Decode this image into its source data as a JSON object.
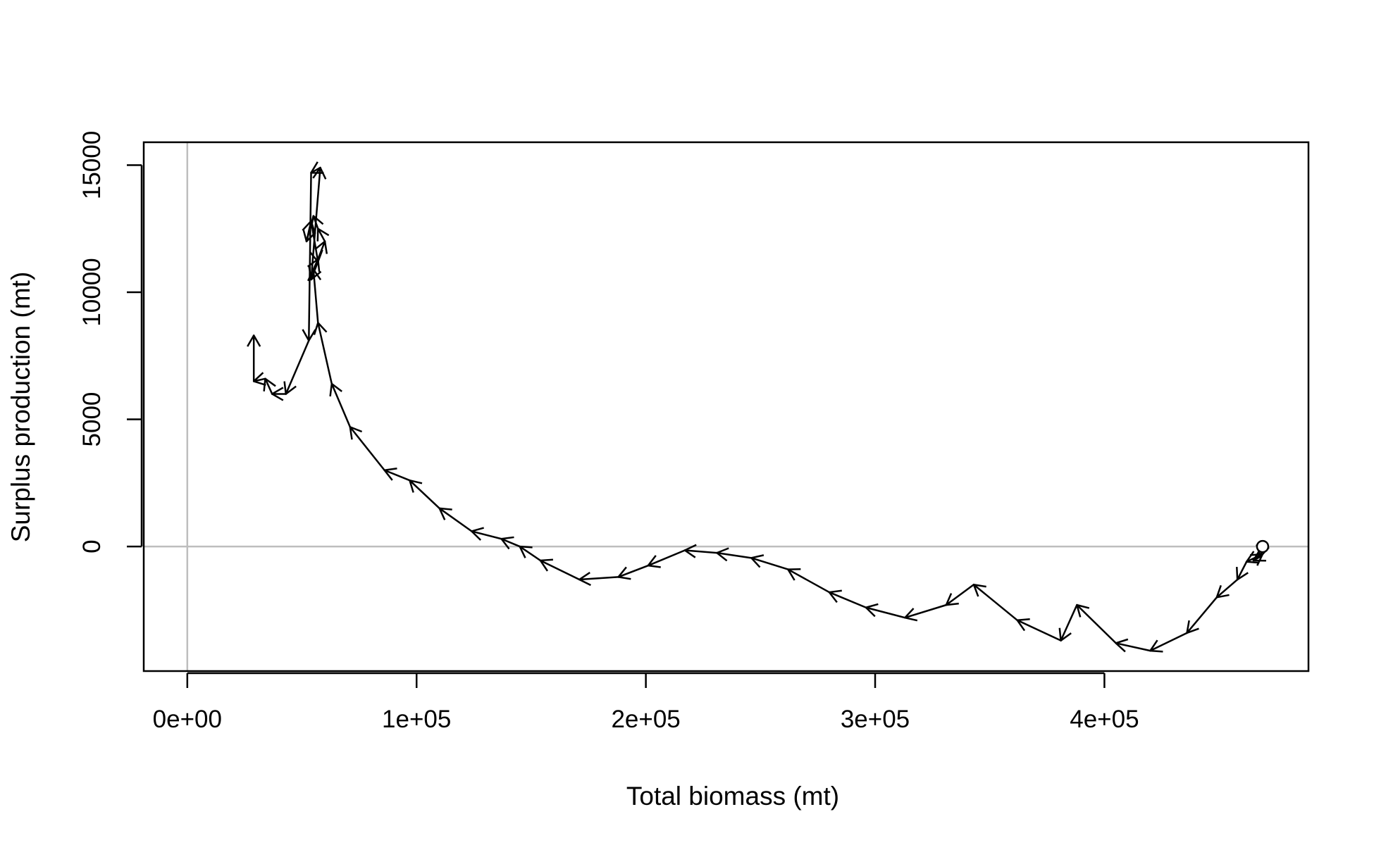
{
  "chart_data": {
    "type": "line",
    "title": "",
    "xlabel": "Total biomass (mt)",
    "ylabel": "Surplus production (mt)",
    "xlim": [
      -19000,
      489000
    ],
    "ylim": [
      -4900,
      15900
    ],
    "x_ticks": [
      {
        "value": 0,
        "label": "0e+00"
      },
      {
        "value": 100000,
        "label": "1e+05"
      },
      {
        "value": 200000,
        "label": "2e+05"
      },
      {
        "value": 300000,
        "label": "3e+05"
      },
      {
        "value": 400000,
        "label": "4e+05"
      }
    ],
    "y_ticks": [
      {
        "value": 0,
        "label": "0"
      },
      {
        "value": 5000,
        "label": "5000"
      },
      {
        "value": 10000,
        "label": "10000"
      },
      {
        "value": 15000,
        "label": "15000"
      }
    ],
    "reference_lines": {
      "x": 0,
      "y": 0,
      "color": "#bebebe"
    },
    "line_color": "#000000",
    "arrows": true,
    "start_marker": "open-circle",
    "points": [
      {
        "x": 469000,
        "y": 0
      },
      {
        "x": 468000,
        "y": -400
      },
      {
        "x": 465000,
        "y": -550
      },
      {
        "x": 469000,
        "y": -300
      },
      {
        "x": 462000,
        "y": -600
      },
      {
        "x": 458000,
        "y": -1300
      },
      {
        "x": 449000,
        "y": -2000
      },
      {
        "x": 436000,
        "y": -3400
      },
      {
        "x": 420000,
        "y": -4100
      },
      {
        "x": 405000,
        "y": -3800
      },
      {
        "x": 388000,
        "y": -2300
      },
      {
        "x": 381000,
        "y": -3700
      },
      {
        "x": 362000,
        "y": -2900
      },
      {
        "x": 343000,
        "y": -1500
      },
      {
        "x": 331000,
        "y": -2300
      },
      {
        "x": 313000,
        "y": -2800
      },
      {
        "x": 296000,
        "y": -2400
      },
      {
        "x": 280000,
        "y": -1800
      },
      {
        "x": 262000,
        "y": -900
      },
      {
        "x": 246000,
        "y": -450
      },
      {
        "x": 231000,
        "y": -250
      },
      {
        "x": 217000,
        "y": -150
      },
      {
        "x": 201000,
        "y": -750
      },
      {
        "x": 188000,
        "y": -1200
      },
      {
        "x": 171000,
        "y": -1300
      },
      {
        "x": 154000,
        "y": -550
      },
      {
        "x": 145000,
        "y": 0
      },
      {
        "x": 137000,
        "y": 300
      },
      {
        "x": 124000,
        "y": 600
      },
      {
        "x": 110000,
        "y": 1500
      },
      {
        "x": 97000,
        "y": 2600
      },
      {
        "x": 86000,
        "y": 3000
      },
      {
        "x": 71000,
        "y": 4700
      },
      {
        "x": 63000,
        "y": 6400
      },
      {
        "x": 57000,
        "y": 8800
      },
      {
        "x": 55000,
        "y": 10900
      },
      {
        "x": 57000,
        "y": 11300
      },
      {
        "x": 60000,
        "y": 12000
      },
      {
        "x": 57000,
        "y": 12500
      },
      {
        "x": 55000,
        "y": 13000
      },
      {
        "x": 52000,
        "y": 12000
      },
      {
        "x": 54000,
        "y": 12800
      },
      {
        "x": 57000,
        "y": 11200
      },
      {
        "x": 54000,
        "y": 10500
      },
      {
        "x": 58000,
        "y": 14900
      },
      {
        "x": 54000,
        "y": 14700
      },
      {
        "x": 53000,
        "y": 8100
      },
      {
        "x": 43000,
        "y": 6000
      },
      {
        "x": 37000,
        "y": 6000
      },
      {
        "x": 34000,
        "y": 6600
      },
      {
        "x": 29000,
        "y": 6500
      },
      {
        "x": 29000,
        "y": 8300
      }
    ]
  }
}
